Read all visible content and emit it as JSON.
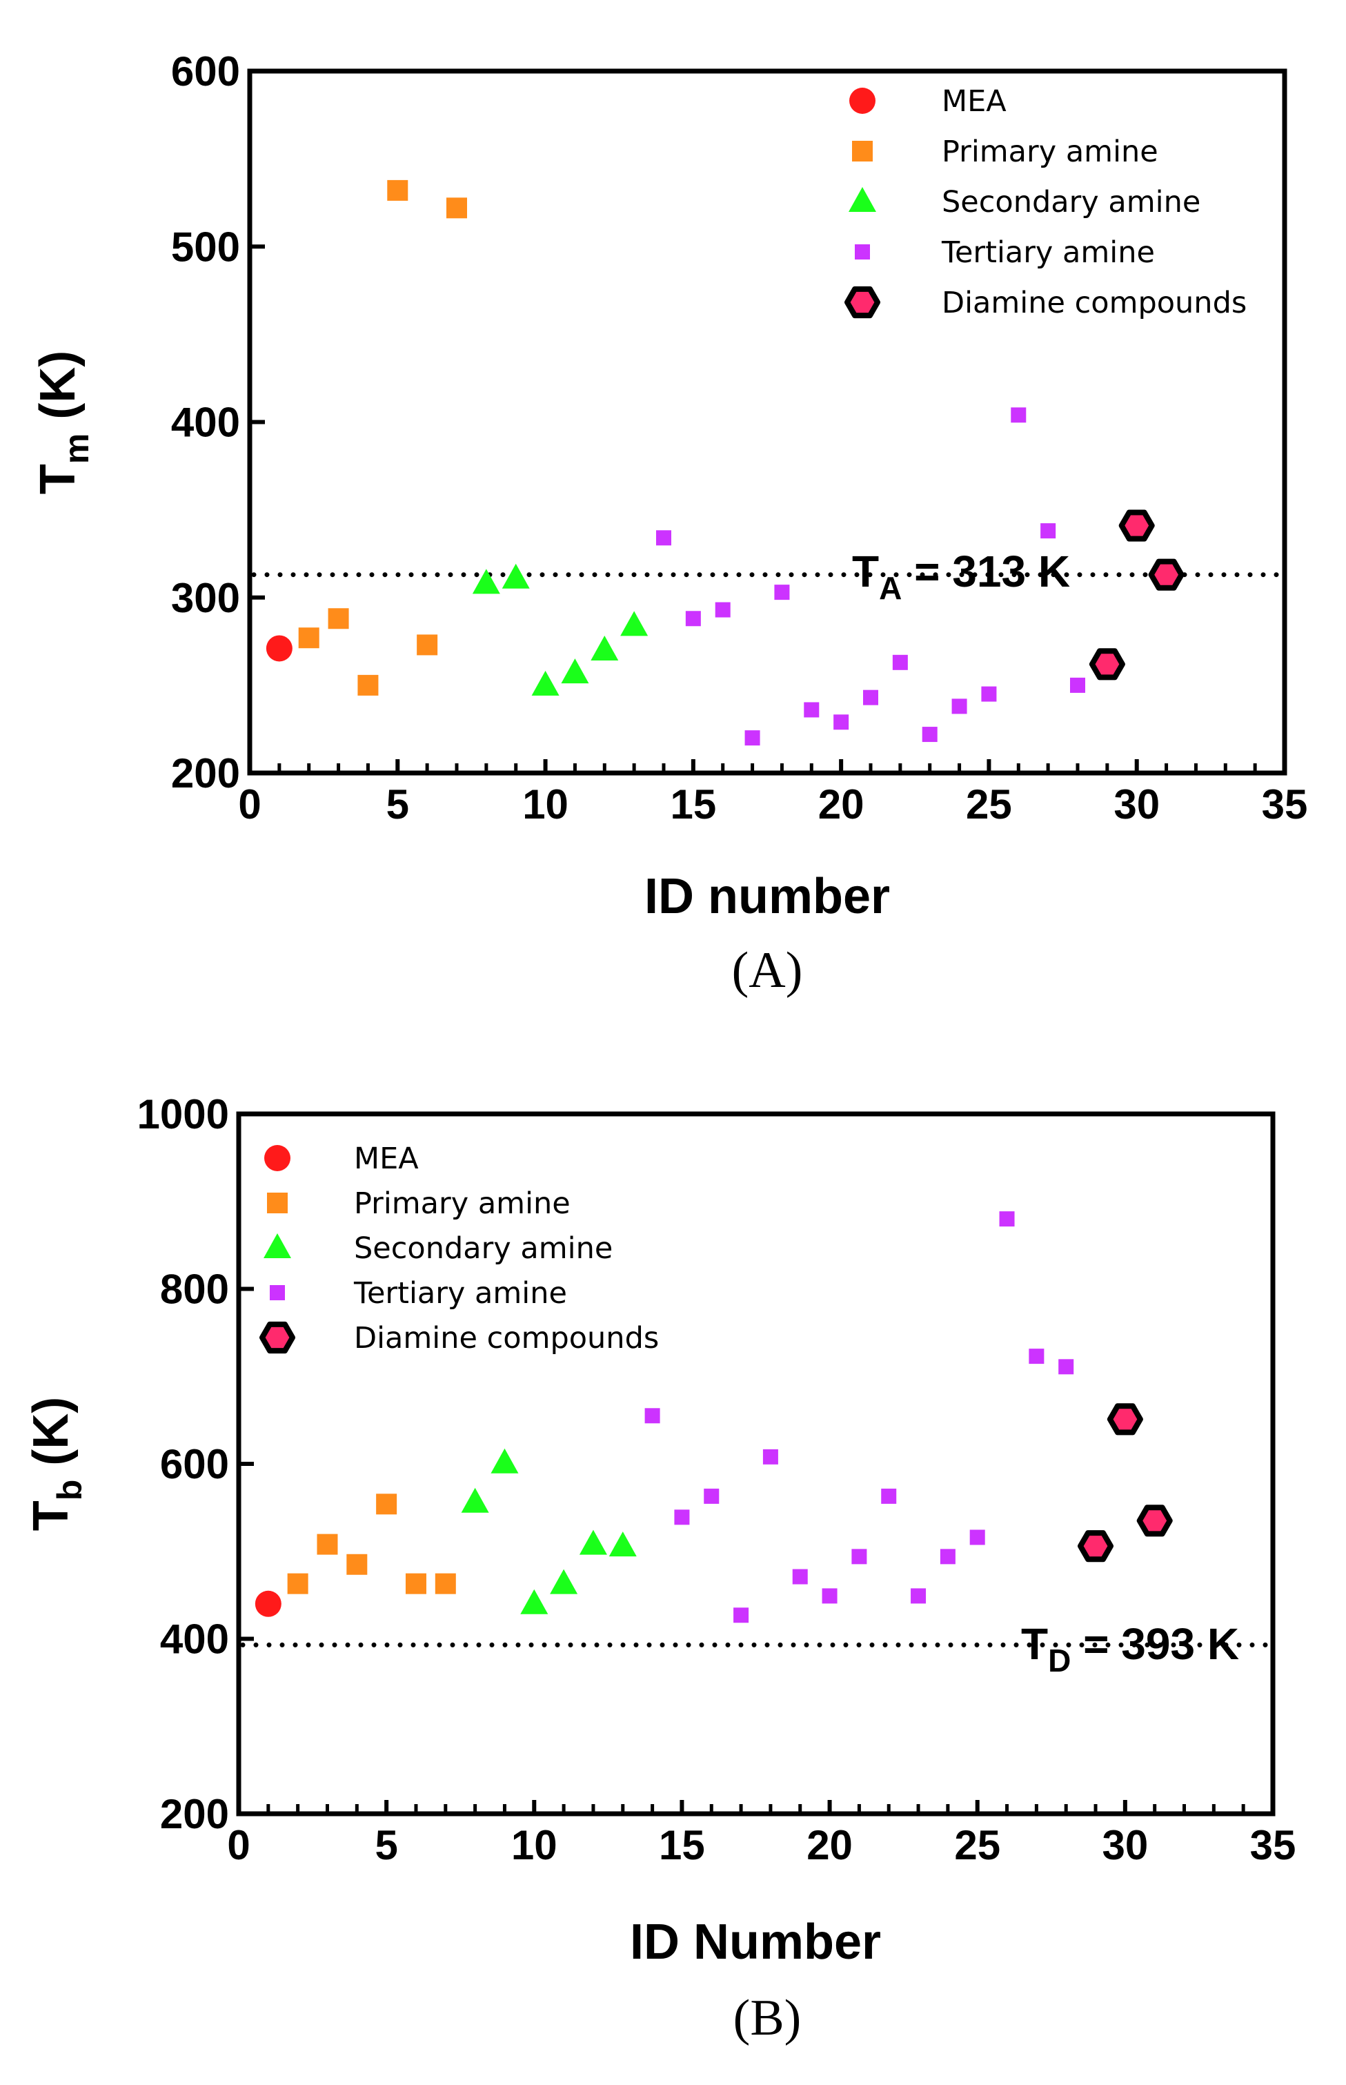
{
  "chart_data": [
    {
      "panel": "A",
      "type": "scatter",
      "caption": "(A)",
      "xlabel": "ID number",
      "ylabel_main": "T",
      "ylabel_sub": "m",
      "ylabel_unit": " (K)",
      "xlim": [
        0,
        35
      ],
      "ylim": [
        200,
        600
      ],
      "xticks": [
        0,
        5,
        10,
        15,
        20,
        25,
        30,
        35
      ],
      "yticks": [
        200,
        300,
        400,
        500,
        600
      ],
      "grid": false,
      "legend_position": "top-right",
      "reference_line": {
        "y": 313,
        "style": "dotted",
        "label_main": "T",
        "label_sub": "A",
        "label_rest": " = 313 K"
      },
      "series": [
        {
          "name": "MEA",
          "marker": "circle",
          "color": "#ff1a1a",
          "x": [
            1
          ],
          "y": [
            271
          ]
        },
        {
          "name": "Primary amine",
          "marker": "square",
          "color": "#ff8c1a",
          "x": [
            2,
            3,
            4,
            5,
            6,
            7
          ],
          "y": [
            277,
            288,
            250,
            532,
            273,
            522
          ]
        },
        {
          "name": "Secondary amine",
          "marker": "triangle",
          "color": "#1aff1a",
          "x": [
            8,
            9,
            10,
            11,
            12,
            13
          ],
          "y": [
            308,
            311,
            250,
            257,
            270,
            284
          ]
        },
        {
          "name": "Tertiary amine",
          "marker": "small-square",
          "color": "#cc33ff",
          "x": [
            14,
            15,
            16,
            17,
            18,
            19,
            20,
            21,
            22,
            23,
            24,
            25,
            26,
            27,
            28
          ],
          "y": [
            334,
            288,
            293,
            220,
            303,
            236,
            229,
            243,
            263,
            222,
            238,
            245,
            404,
            338,
            250
          ]
        },
        {
          "name": "Diamine compounds",
          "marker": "hexagon",
          "color": "#ff2a6d",
          "x": [
            29,
            30,
            31
          ],
          "y": [
            262,
            341,
            313
          ]
        }
      ]
    },
    {
      "panel": "B",
      "type": "scatter",
      "caption": "(B)",
      "xlabel": "ID Number",
      "ylabel_main": "T",
      "ylabel_sub": "b",
      "ylabel_unit": " (K)",
      "xlim": [
        0,
        35
      ],
      "ylim": [
        200,
        1000
      ],
      "xticks": [
        0,
        5,
        10,
        15,
        20,
        25,
        30,
        35
      ],
      "yticks": [
        200,
        400,
        600,
        800,
        1000
      ],
      "grid": false,
      "legend_position": "top-left",
      "reference_line": {
        "y": 393,
        "style": "dotted",
        "label_main": "T",
        "label_sub": "D",
        "label_rest": " = 393 K"
      },
      "series": [
        {
          "name": "MEA",
          "marker": "circle",
          "color": "#ff1a1a",
          "x": [
            1
          ],
          "y": [
            440
          ]
        },
        {
          "name": "Primary amine",
          "marker": "square",
          "color": "#ff8c1a",
          "x": [
            2,
            3,
            4,
            5,
            6,
            7
          ],
          "y": [
            463,
            508,
            485,
            554,
            463,
            463
          ]
        },
        {
          "name": "Secondary amine",
          "marker": "triangle",
          "color": "#1aff1a",
          "x": [
            8,
            9,
            10,
            11,
            12,
            13
          ],
          "y": [
            556,
            601,
            440,
            463,
            508,
            506
          ]
        },
        {
          "name": "Tertiary amine",
          "marker": "small-square",
          "color": "#cc33ff",
          "x": [
            14,
            15,
            16,
            17,
            18,
            19,
            20,
            21,
            22,
            23,
            24,
            25,
            26,
            27,
            28
          ],
          "y": [
            655,
            539,
            563,
            427,
            608,
            471,
            449,
            494,
            563,
            449,
            494,
            516,
            880,
            723,
            711
          ]
        },
        {
          "name": "Diamine compounds",
          "marker": "hexagon",
          "color": "#ff2a6d",
          "x": [
            29,
            30,
            31
          ],
          "y": [
            506,
            651,
            535
          ]
        }
      ]
    }
  ]
}
